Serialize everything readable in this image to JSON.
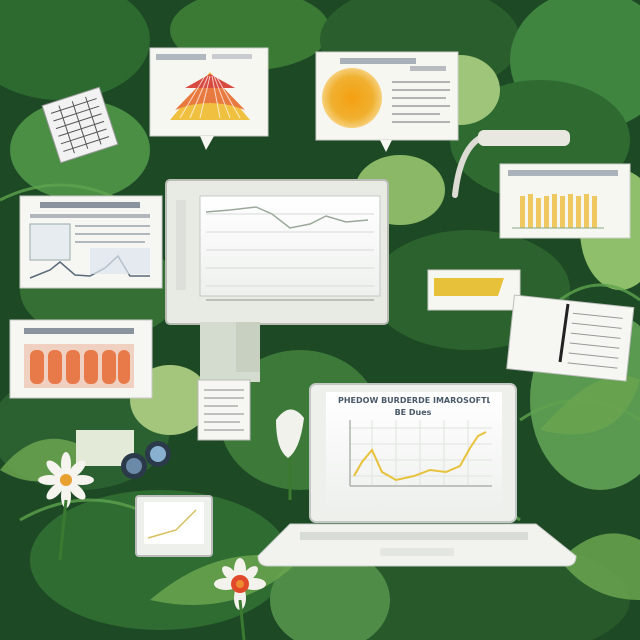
{
  "scene": {
    "description_colors": {
      "foliage_dark": "#1b4a24",
      "foliage_mid": "#3f7f3a",
      "foliage_light": "#8fbf6a",
      "paper": "#f6f6f0",
      "accent_yellow": "#e8c13a",
      "accent_orange": "#e88a2a",
      "salmon": "#e87a4a"
    },
    "laptop_caption": {
      "line1": "PHEDOW BURDERDE IMAROSOFTLY",
      "line2": "BE Dues"
    },
    "icons": [
      "flower-icon",
      "binoculars-icon",
      "laptop-icon",
      "monitor-icon"
    ]
  }
}
